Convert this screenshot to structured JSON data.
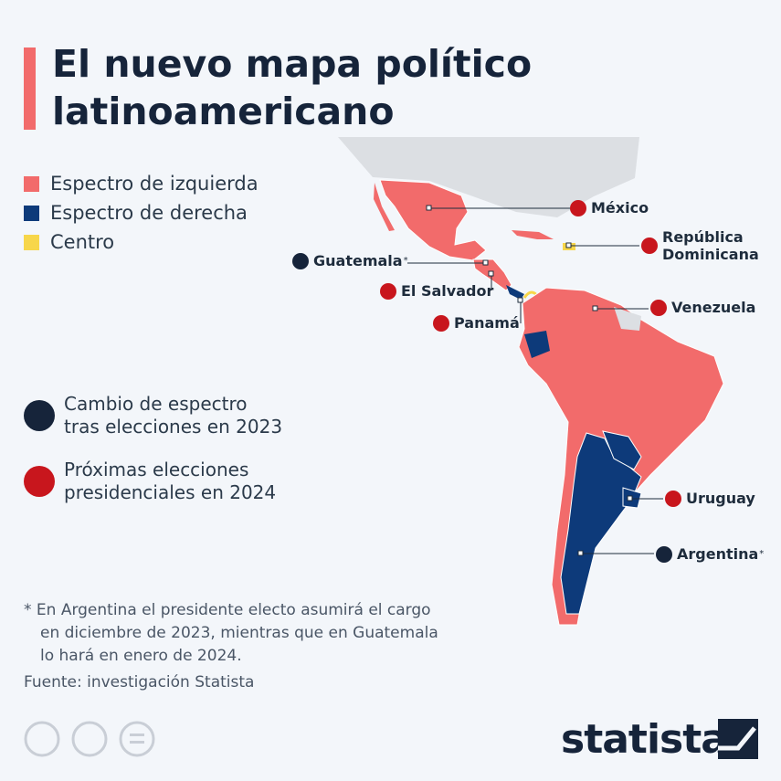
{
  "header": {
    "title_lines": [
      "El nuevo mapa político",
      "latinoamericano"
    ]
  },
  "legend": [
    {
      "label": "Espectro de izquierda",
      "color": "#f26b6b"
    },
    {
      "label": "Espectro de derecha",
      "color": "#0d3a7a"
    },
    {
      "label": "Centro",
      "color": "#f7d64a"
    }
  ],
  "countries": [
    {
      "label": "México"
    },
    {
      "label_lines": [
        "República",
        "Dominicana"
      ]
    },
    {
      "label": "Guatemala",
      "asterisk": "*"
    },
    {
      "label": "El Salvador"
    },
    {
      "label": "Panamá"
    },
    {
      "label": "Venezuela"
    },
    {
      "label": "Uruguay"
    },
    {
      "label": "Argentina",
      "asterisk": "*"
    }
  ],
  "icon_key": [
    {
      "lines": [
        "Cambio de espectro",
        "tras elecciones en 2023"
      ]
    },
    {
      "lines": [
        "Próximas elecciones",
        "presidenciales en 2024"
      ]
    }
  ],
  "footnote": {
    "lines": [
      "* En Argentina el presidente electo asumirá el cargo",
      "en diciembre de 2023, mientras que en Guatemala",
      "lo hará en enero de 2024."
    ]
  },
  "footer": {
    "source": "Fuente: investigación Statista",
    "logo": "statista"
  }
}
